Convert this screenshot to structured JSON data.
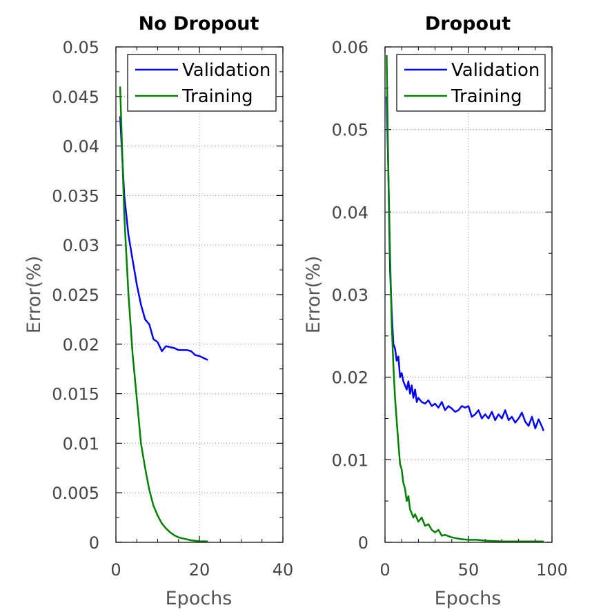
{
  "chart_data": [
    {
      "type": "line",
      "title": "No Dropout",
      "xlabel": "Epochs",
      "ylabel": "Error(%)",
      "xlim": [
        0,
        40
      ],
      "ylim": [
        0,
        0.05
      ],
      "xticks": [
        "0",
        "20",
        "40"
      ],
      "yticks": [
        "0",
        "0.005",
        "0.01",
        "0.015",
        "0.02",
        "0.025",
        "0.03",
        "0.035",
        "0.04",
        "0.045",
        "0.05"
      ],
      "grid": true,
      "legend_position": "top-right",
      "series": [
        {
          "name": "Validation",
          "color": "#0000ff",
          "x": [
            1,
            2,
            3,
            4,
            5,
            6,
            7,
            8,
            9,
            10,
            11,
            12,
            13,
            14,
            15,
            16,
            17,
            18,
            19,
            20,
            21,
            22
          ],
          "y": [
            0.043,
            0.035,
            0.031,
            0.0285,
            0.026,
            0.024,
            0.0225,
            0.022,
            0.0205,
            0.0202,
            0.0193,
            0.0198,
            0.0197,
            0.0196,
            0.0194,
            0.0194,
            0.0194,
            0.0193,
            0.0189,
            0.0188,
            0.0186,
            0.0184
          ]
        },
        {
          "name": "Training",
          "color": "#008000",
          "x": [
            1,
            2,
            3,
            4,
            5,
            6,
            7,
            8,
            9,
            10,
            11,
            12,
            13,
            14,
            15,
            16,
            17,
            18,
            19,
            20,
            21,
            22
          ],
          "y": [
            0.046,
            0.033,
            0.025,
            0.019,
            0.0145,
            0.01,
            0.0075,
            0.0053,
            0.0037,
            0.0027,
            0.0019,
            0.0014,
            0.001,
            0.0007,
            0.0005,
            0.0004,
            0.0003,
            0.0002,
            0.00015,
            0.0001,
            0.0001,
            0.0001
          ]
        }
      ]
    },
    {
      "type": "line",
      "title": "Dropout",
      "xlabel": "Epochs",
      "ylabel": "Error(%)",
      "xlim": [
        0,
        100
      ],
      "ylim": [
        0,
        0.06
      ],
      "xticks": [
        "0",
        "50",
        "100"
      ],
      "yticks": [
        "0",
        "0.01",
        "0.02",
        "0.03",
        "0.04",
        "0.05",
        "0.06"
      ],
      "grid": true,
      "legend_position": "top-right",
      "series": [
        {
          "name": "Validation",
          "color": "#0000ff",
          "x": [
            1,
            2,
            3,
            4,
            5,
            6,
            7,
            8,
            9,
            10,
            11,
            12,
            13,
            14,
            15,
            16,
            17,
            18,
            19,
            20,
            22,
            24,
            26,
            28,
            30,
            32,
            34,
            36,
            38,
            40,
            42,
            44,
            46,
            48,
            50,
            52,
            54,
            56,
            58,
            60,
            62,
            64,
            66,
            68,
            70,
            72,
            74,
            76,
            78,
            80,
            82,
            84,
            86,
            88,
            90,
            92,
            94,
            95
          ],
          "y": [
            0.054,
            0.045,
            0.033,
            0.028,
            0.024,
            0.0235,
            0.022,
            0.0225,
            0.02,
            0.0205,
            0.0195,
            0.019,
            0.0185,
            0.0195,
            0.018,
            0.019,
            0.0175,
            0.0185,
            0.017,
            0.0175,
            0.017,
            0.0168,
            0.0172,
            0.0165,
            0.0168,
            0.0163,
            0.017,
            0.016,
            0.0165,
            0.0162,
            0.0158,
            0.016,
            0.0165,
            0.0163,
            0.0165,
            0.0152,
            0.0155,
            0.016,
            0.015,
            0.0155,
            0.015,
            0.0158,
            0.0148,
            0.0155,
            0.015,
            0.016,
            0.0148,
            0.0152,
            0.0145,
            0.015,
            0.0157,
            0.0146,
            0.0141,
            0.0152,
            0.0138,
            0.0149,
            0.014,
            0.0135
          ]
        },
        {
          "name": "Training",
          "color": "#008000",
          "x": [
            1,
            2,
            3,
            4,
            5,
            6,
            7,
            8,
            9,
            10,
            11,
            12,
            13,
            14,
            15,
            16,
            17,
            18,
            20,
            22,
            24,
            26,
            28,
            30,
            32,
            34,
            36,
            40,
            45,
            50,
            55,
            60,
            70,
            80,
            90,
            95
          ],
          "y": [
            0.059,
            0.045,
            0.035,
            0.0265,
            0.0215,
            0.0175,
            0.0148,
            0.012,
            0.0095,
            0.0088,
            0.0072,
            0.0065,
            0.005,
            0.0056,
            0.004,
            0.0035,
            0.003,
            0.0034,
            0.0025,
            0.003,
            0.002,
            0.0022,
            0.0015,
            0.0012,
            0.0015,
            0.0008,
            0.0009,
            0.0006,
            0.0004,
            0.0003,
            0.0003,
            0.0002,
            0.0001,
            0.0001,
            0.0001,
            0.0001
          ]
        }
      ]
    }
  ]
}
